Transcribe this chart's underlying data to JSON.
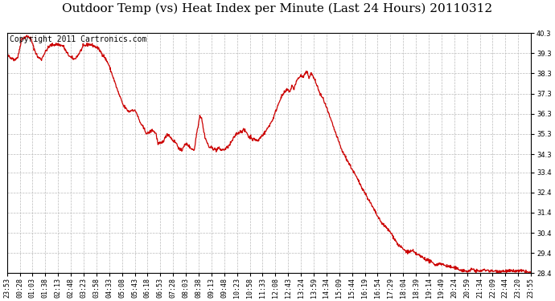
{
  "title": "Outdoor Temp (vs) Heat Index per Minute (Last 24 Hours) 20110312",
  "copyright_text": "Copyright 2011 Cartronics.com",
  "line_color": "#cc0000",
  "background_color": "#ffffff",
  "plot_bg_color": "#ffffff",
  "grid_color": "#bbbbbb",
  "ylim": [
    28.4,
    40.3
  ],
  "yticks": [
    28.4,
    29.4,
    30.4,
    31.4,
    32.4,
    33.4,
    34.3,
    35.3,
    36.3,
    37.3,
    38.3,
    39.3,
    40.3
  ],
  "xtick_labels": [
    "23:53",
    "00:28",
    "01:03",
    "01:38",
    "02:13",
    "02:48",
    "03:23",
    "03:58",
    "04:33",
    "05:08",
    "05:43",
    "06:18",
    "06:53",
    "07:28",
    "08:03",
    "08:38",
    "09:13",
    "09:48",
    "10:23",
    "10:58",
    "11:33",
    "12:08",
    "12:43",
    "13:24",
    "13:59",
    "14:34",
    "15:09",
    "15:44",
    "16:19",
    "16:54",
    "17:29",
    "18:04",
    "18:39",
    "19:14",
    "19:49",
    "20:24",
    "20:59",
    "21:34",
    "22:09",
    "22:44",
    "23:20",
    "23:55"
  ],
  "title_fontsize": 11,
  "tick_fontsize": 6,
  "copyright_fontsize": 7,
  "waypoints": [
    [
      0,
      39.2
    ],
    [
      5,
      39.15
    ],
    [
      10,
      39.05
    ],
    [
      15,
      39.1
    ],
    [
      20,
      38.95
    ],
    [
      25,
      39.05
    ],
    [
      30,
      39.1
    ],
    [
      40,
      40.0
    ],
    [
      55,
      40.15
    ],
    [
      65,
      40.05
    ],
    [
      75,
      39.5
    ],
    [
      85,
      39.1
    ],
    [
      95,
      39.0
    ],
    [
      100,
      39.2
    ],
    [
      110,
      39.5
    ],
    [
      120,
      39.7
    ],
    [
      140,
      39.75
    ],
    [
      155,
      39.65
    ],
    [
      165,
      39.3
    ],
    [
      175,
      39.1
    ],
    [
      185,
      39.0
    ],
    [
      195,
      39.2
    ],
    [
      210,
      39.65
    ],
    [
      225,
      39.75
    ],
    [
      235,
      39.7
    ],
    [
      250,
      39.55
    ],
    [
      265,
      39.2
    ],
    [
      278,
      38.8
    ],
    [
      290,
      38.2
    ],
    [
      305,
      37.4
    ],
    [
      320,
      36.7
    ],
    [
      335,
      36.4
    ],
    [
      345,
      36.5
    ],
    [
      355,
      36.4
    ],
    [
      365,
      35.9
    ],
    [
      375,
      35.6
    ],
    [
      385,
      35.3
    ],
    [
      400,
      35.5
    ],
    [
      410,
      35.3
    ],
    [
      415,
      34.8
    ],
    [
      425,
      34.85
    ],
    [
      435,
      35.1
    ],
    [
      440,
      35.3
    ],
    [
      445,
      35.25
    ],
    [
      455,
      35.0
    ],
    [
      465,
      34.85
    ],
    [
      475,
      34.5
    ],
    [
      480,
      34.45
    ],
    [
      485,
      34.7
    ],
    [
      495,
      34.8
    ],
    [
      505,
      34.6
    ],
    [
      515,
      34.5
    ],
    [
      520,
      35.2
    ],
    [
      530,
      36.2
    ],
    [
      535,
      36.1
    ],
    [
      540,
      35.5
    ],
    [
      545,
      35.1
    ],
    [
      555,
      34.65
    ],
    [
      565,
      34.6
    ],
    [
      575,
      34.5
    ],
    [
      580,
      34.6
    ],
    [
      590,
      34.5
    ],
    [
      600,
      34.55
    ],
    [
      610,
      34.7
    ],
    [
      620,
      35.0
    ],
    [
      630,
      35.3
    ],
    [
      640,
      35.4
    ],
    [
      650,
      35.5
    ],
    [
      660,
      35.35
    ],
    [
      665,
      35.1
    ],
    [
      670,
      35.2
    ],
    [
      675,
      35.0
    ],
    [
      680,
      35.05
    ],
    [
      690,
      34.95
    ],
    [
      695,
      35.1
    ],
    [
      700,
      35.2
    ],
    [
      710,
      35.4
    ],
    [
      720,
      35.7
    ],
    [
      730,
      36.0
    ],
    [
      740,
      36.5
    ],
    [
      750,
      37.0
    ],
    [
      760,
      37.3
    ],
    [
      770,
      37.5
    ],
    [
      778,
      37.4
    ],
    [
      783,
      37.7
    ],
    [
      788,
      37.5
    ],
    [
      793,
      37.8
    ],
    [
      798,
      38.0
    ],
    [
      803,
      38.1
    ],
    [
      808,
      38.2
    ],
    [
      813,
      38.1
    ],
    [
      820,
      38.3
    ],
    [
      825,
      38.35
    ],
    [
      830,
      38.1
    ],
    [
      835,
      38.3
    ],
    [
      840,
      38.2
    ],
    [
      850,
      37.8
    ],
    [
      860,
      37.3
    ],
    [
      870,
      37.0
    ],
    [
      880,
      36.5
    ],
    [
      890,
      36.0
    ],
    [
      900,
      35.5
    ],
    [
      910,
      35.0
    ],
    [
      920,
      34.5
    ],
    [
      935,
      34.0
    ],
    [
      950,
      33.5
    ],
    [
      965,
      33.0
    ],
    [
      980,
      32.5
    ],
    [
      995,
      32.0
    ],
    [
      1010,
      31.5
    ],
    [
      1025,
      31.0
    ],
    [
      1040,
      30.7
    ],
    [
      1055,
      30.4
    ],
    [
      1065,
      30.1
    ],
    [
      1075,
      29.8
    ],
    [
      1085,
      29.65
    ],
    [
      1095,
      29.5
    ],
    [
      1105,
      29.45
    ],
    [
      1115,
      29.5
    ],
    [
      1120,
      29.4
    ],
    [
      1130,
      29.3
    ],
    [
      1140,
      29.2
    ],
    [
      1150,
      29.1
    ],
    [
      1160,
      29.0
    ],
    [
      1170,
      28.9
    ],
    [
      1180,
      28.8
    ],
    [
      1190,
      28.9
    ],
    [
      1200,
      28.8
    ],
    [
      1210,
      28.75
    ],
    [
      1220,
      28.7
    ],
    [
      1230,
      28.65
    ],
    [
      1240,
      28.6
    ],
    [
      1250,
      28.55
    ],
    [
      1260,
      28.5
    ],
    [
      1270,
      28.5
    ],
    [
      1280,
      28.6
    ],
    [
      1290,
      28.5
    ],
    [
      1300,
      28.5
    ],
    [
      1310,
      28.55
    ],
    [
      1320,
      28.55
    ],
    [
      1330,
      28.5
    ],
    [
      1340,
      28.5
    ],
    [
      1350,
      28.5
    ],
    [
      1360,
      28.5
    ],
    [
      1370,
      28.5
    ],
    [
      1380,
      28.5
    ],
    [
      1390,
      28.5
    ],
    [
      1400,
      28.5
    ],
    [
      1410,
      28.5
    ],
    [
      1420,
      28.5
    ],
    [
      1430,
      28.45
    ],
    [
      1440,
      28.4
    ]
  ]
}
